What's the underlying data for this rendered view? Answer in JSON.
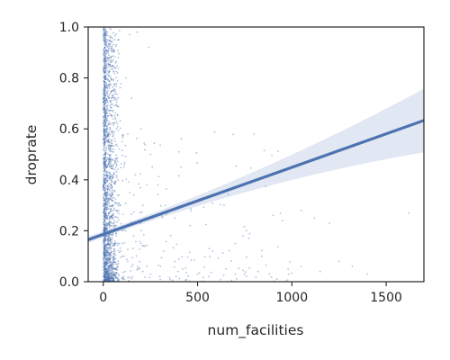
{
  "chart_data": {
    "type": "scatter",
    "title": "",
    "xlabel": "num_facilities",
    "ylabel": "droprate",
    "xlim": [
      -80,
      1700
    ],
    "ylim": [
      0,
      1.0
    ],
    "x_ticks": [
      0,
      500,
      1000,
      1500
    ],
    "x_tick_labels": [
      "0",
      "500",
      "1000",
      "1500"
    ],
    "y_ticks": [
      0.0,
      0.2,
      0.4,
      0.6,
      0.8,
      1.0
    ],
    "y_tick_labels": [
      "0.0",
      "0.2",
      "0.4",
      "0.6",
      "0.8",
      "1.0"
    ],
    "grid": false,
    "legend": "none",
    "colors": {
      "points": "#4c72b0",
      "line": "#4c72b0",
      "band": "#c9d4ea",
      "axes": "#262626"
    },
    "regression": {
      "x": [
        -80,
        1700
      ],
      "y": [
        0.165,
        0.633
      ],
      "ci_at_xmax": [
        0.51,
        0.76
      ]
    },
    "scatter_summary": {
      "note_dense_cluster_x": [
        0,
        100
      ],
      "points_sample": [
        [
          12,
          0.98
        ],
        [
          20,
          0.93
        ],
        [
          18,
          0.85
        ],
        [
          25,
          0.79
        ],
        [
          30,
          0.72
        ],
        [
          15,
          0.66
        ],
        [
          22,
          0.6
        ],
        [
          28,
          0.55
        ],
        [
          10,
          0.5
        ],
        [
          35,
          0.45
        ],
        [
          40,
          0.4
        ],
        [
          18,
          0.35
        ],
        [
          45,
          0.3
        ],
        [
          52,
          0.26
        ],
        [
          60,
          0.22
        ],
        [
          70,
          0.18
        ],
        [
          85,
          0.15
        ],
        [
          95,
          0.12
        ],
        [
          110,
          0.1
        ],
        [
          130,
          0.08
        ],
        [
          150,
          0.06
        ],
        [
          180,
          0.05
        ],
        [
          210,
          0.04
        ],
        [
          250,
          0.03
        ],
        [
          300,
          0.02
        ],
        [
          120,
          0.2
        ],
        [
          160,
          0.18
        ],
        [
          200,
          0.15
        ],
        [
          90,
          0.3
        ],
        [
          140,
          0.35
        ],
        [
          170,
          0.42
        ],
        [
          230,
          0.38
        ],
        [
          260,
          0.25
        ],
        [
          320,
          0.12
        ],
        [
          380,
          0.08
        ],
        [
          420,
          0.05
        ],
        [
          500,
          0.03
        ],
        [
          560,
          0.02
        ],
        [
          650,
          0.05
        ],
        [
          700,
          0.03
        ],
        [
          760,
          0.02
        ],
        [
          820,
          0.04
        ],
        [
          880,
          0.03
        ],
        [
          920,
          0.01
        ],
        [
          980,
          0.05
        ],
        [
          1050,
          0.06
        ],
        [
          1150,
          0.04
        ],
        [
          1200,
          0.23
        ],
        [
          1250,
          0.08
        ],
        [
          1320,
          0.06
        ],
        [
          1400,
          0.03
        ],
        [
          1620,
          0.27
        ],
        [
          800,
          0.58
        ],
        [
          700,
          0.15
        ],
        [
          900,
          0.26
        ],
        [
          950,
          0.24
        ],
        [
          1050,
          0.28
        ],
        [
          1120,
          0.25
        ],
        [
          580,
          0.12
        ],
        [
          640,
          0.3
        ],
        [
          760,
          0.2
        ],
        [
          840,
          0.1
        ],
        [
          460,
          0.22
        ],
        [
          380,
          0.25
        ],
        [
          330,
          0.3
        ],
        [
          290,
          0.38
        ],
        [
          250,
          0.5
        ],
        [
          200,
          0.6
        ],
        [
          150,
          0.72
        ],
        [
          120,
          0.8
        ],
        [
          180,
          0.98
        ],
        [
          240,
          0.92
        ],
        [
          140,
          0.97
        ],
        [
          80,
          0.88
        ],
        [
          60,
          0.95
        ],
        [
          50,
          0.75
        ],
        [
          75,
          0.62
        ],
        [
          55,
          0.52
        ],
        [
          65,
          0.47
        ],
        [
          100,
          0.55
        ],
        [
          110,
          0.45
        ],
        [
          130,
          0.58
        ],
        [
          210,
          0.3
        ],
        [
          260,
          0.45
        ]
      ]
    }
  }
}
